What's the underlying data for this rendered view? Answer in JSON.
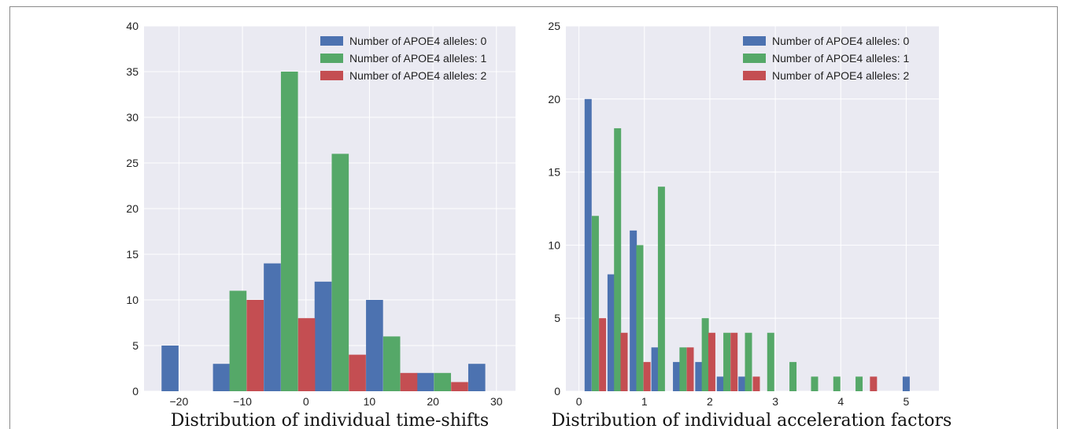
{
  "colors": {
    "alleles_0": "#4C72B0",
    "alleles_1": "#55A868",
    "alleles_2": "#C44E52",
    "plot_bg": "#EAEAF2",
    "grid": "#FFFFFF"
  },
  "chart_data": [
    {
      "type": "bar",
      "title": "",
      "xlabel": "Distribution of individual time-shifts",
      "ylabel": "",
      "xlim": [
        -25.5,
        33
      ],
      "ylim": [
        0,
        40
      ],
      "xticks": [
        -20,
        -10,
        0,
        10,
        20,
        30
      ],
      "xtick_labels": [
        "−20",
        "−10",
        "0",
        "10",
        "20",
        "30"
      ],
      "yticks": [
        0,
        5,
        10,
        15,
        20,
        25,
        30,
        35,
        40
      ],
      "bar_width": 2.68,
      "grid": true,
      "legend_position": "top-right",
      "series": [
        {
          "name": "Number of APOE4 alleles: 0",
          "color_key": "alleles_0",
          "x": [
            -21.4,
            -13.3,
            -5.3,
            2.7,
            10.8,
            18.8,
            26.9
          ],
          "values": [
            5,
            3,
            14,
            12,
            10,
            2,
            3
          ]
        },
        {
          "name": "Number of APOE4 alleles: 1",
          "color_key": "alleles_1",
          "x": [
            -10.7,
            -2.6,
            5.4,
            13.5,
            21.5
          ],
          "values": [
            11,
            35,
            26,
            6,
            2
          ]
        },
        {
          "name": "Number of APOE4 alleles: 2",
          "color_key": "alleles_2",
          "x": [
            -8.0,
            0.1,
            8.1,
            16.2,
            24.2
          ],
          "values": [
            10,
            8,
            4,
            2,
            1
          ]
        }
      ]
    },
    {
      "type": "bar",
      "title": "",
      "xlabel": "Distribution of individual acceleration factors",
      "ylabel": "",
      "xlim": [
        -0.2,
        5.5
      ],
      "ylim": [
        0,
        25
      ],
      "xticks": [
        0,
        1,
        2,
        3,
        4,
        5
      ],
      "xtick_labels": [
        "0",
        "1",
        "2",
        "3",
        "4",
        "5"
      ],
      "yticks": [
        0,
        5,
        10,
        15,
        20,
        25
      ],
      "bar_width": 0.108,
      "grid": true,
      "legend_position": "top-right",
      "series": [
        {
          "name": "Number of APOE4 alleles: 0",
          "color_key": "alleles_0",
          "x": [
            0.14,
            0.49,
            0.83,
            1.16,
            1.49,
            1.83,
            2.16,
            2.49,
            5.0
          ],
          "values": [
            20,
            8,
            11,
            3,
            2,
            2,
            1,
            1,
            1
          ]
        },
        {
          "name": "Number of APOE4 alleles: 1",
          "color_key": "alleles_1",
          "x": [
            0.25,
            0.59,
            0.93,
            1.26,
            1.59,
            1.93,
            2.26,
            2.59,
            2.93,
            3.27,
            3.6,
            3.94,
            4.28
          ],
          "values": [
            12,
            18,
            10,
            14,
            3,
            5,
            4,
            4,
            4,
            2,
            1,
            1,
            1
          ]
        },
        {
          "name": "Number of APOE4 alleles: 2",
          "color_key": "alleles_2",
          "x": [
            0.36,
            0.69,
            1.04,
            1.7,
            2.03,
            2.37,
            2.71,
            4.5
          ],
          "values": [
            5,
            4,
            2,
            3,
            4,
            4,
            1,
            1
          ]
        }
      ]
    }
  ]
}
